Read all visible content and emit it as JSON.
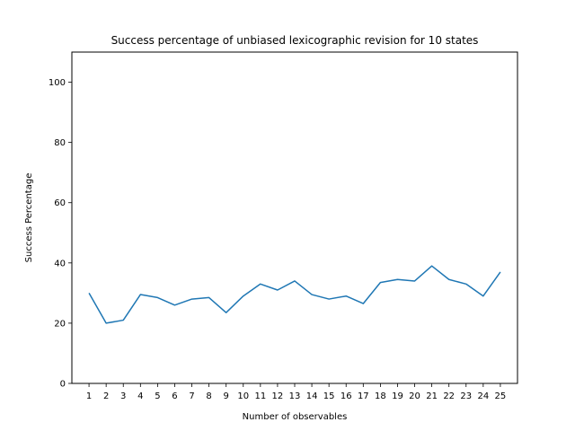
{
  "chart_data": {
    "type": "line",
    "title": "Success percentage of unbiased lexicographic revision for 10 states",
    "xlabel": "Number of observables",
    "ylabel": "Success Percentage",
    "ylim": [
      0,
      110
    ],
    "xlim": [
      0,
      26
    ],
    "grid": false,
    "x": [
      1,
      2,
      3,
      4,
      5,
      6,
      7,
      8,
      9,
      10,
      11,
      12,
      13,
      14,
      15,
      16,
      17,
      18,
      19,
      20,
      21,
      22,
      23,
      24,
      25
    ],
    "x_tick_labels": [
      "1",
      "2",
      "3",
      "4",
      "5",
      "6",
      "7",
      "8",
      "9",
      "10",
      "11",
      "12",
      "13",
      "14",
      "15",
      "16",
      "17",
      "18",
      "19",
      "20",
      "21",
      "22",
      "23",
      "24",
      "25"
    ],
    "y_ticks": [
      0,
      20,
      40,
      60,
      80,
      100
    ],
    "y_tick_labels": [
      "0",
      "20",
      "40",
      "60",
      "80",
      "100"
    ],
    "series": [
      {
        "color": "#1f77b4",
        "values": [
          30,
          20,
          21,
          29.5,
          28.5,
          26,
          28,
          28.5,
          23.5,
          29,
          33,
          31,
          34,
          29.5,
          28,
          29,
          26.5,
          33.5,
          34.5,
          34,
          39,
          34.5,
          33,
          29,
          37
        ]
      }
    ]
  }
}
